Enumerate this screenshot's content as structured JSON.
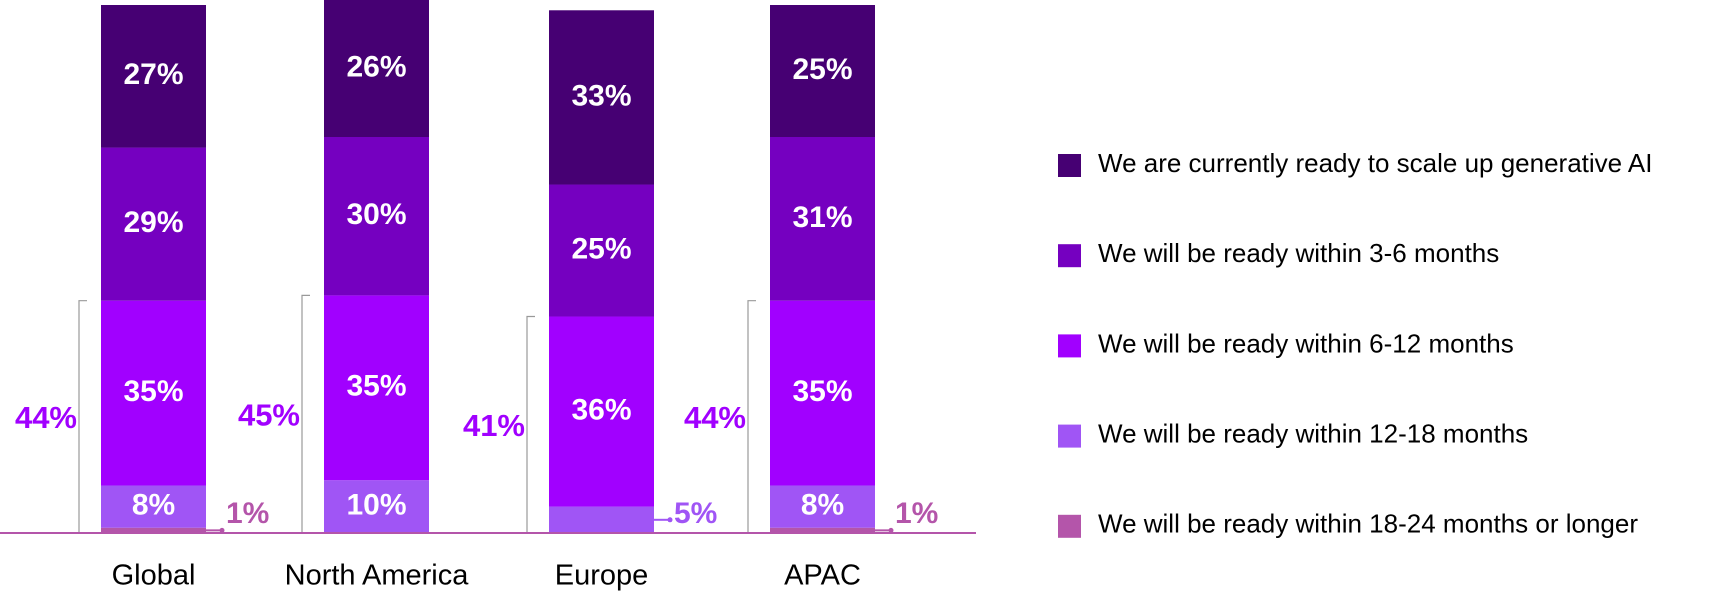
{
  "chart_data": {
    "type": "stacked_bar",
    "categories": [
      "Global",
      "North America",
      "Europe",
      "APAC"
    ],
    "ylim": [
      0,
      100
    ],
    "series": [
      {
        "name": "We are currently ready to scale up generative AI",
        "color": "#460073",
        "values": [
          27,
          26,
          33,
          25
        ],
        "value_labels": [
          "27%",
          "26%",
          "33%",
          "25%"
        ]
      },
      {
        "name": "We will be ready within 3-6 months",
        "color": "#7500c0",
        "values": [
          29,
          30,
          25,
          31
        ],
        "value_labels": [
          "29%",
          "30%",
          "25%",
          "31%"
        ]
      },
      {
        "name": "We will be ready within 6-12 months",
        "color": "#a100ff",
        "values": [
          35,
          35,
          36,
          35
        ],
        "value_labels": [
          "35%",
          "35%",
          "36%",
          "35%"
        ]
      },
      {
        "name": "We will be ready within 12-18 months",
        "color": "#a055f5",
        "values": [
          8,
          10,
          5,
          8
        ],
        "value_labels": [
          "8%",
          "10%",
          "5%",
          "8%"
        ]
      },
      {
        "name": "We will be ready within 18-24 months or longer",
        "color": "#b455aa",
        "values": [
          1,
          null,
          null,
          1
        ],
        "value_labels": [
          "1%",
          null,
          null,
          "1%"
        ]
      }
    ],
    "bracket_totals": {
      "color": "#a100ff",
      "values": [
        44,
        45,
        41,
        44
      ],
      "value_labels": [
        "44%",
        "45%",
        "41%",
        "44%"
      ]
    }
  }
}
